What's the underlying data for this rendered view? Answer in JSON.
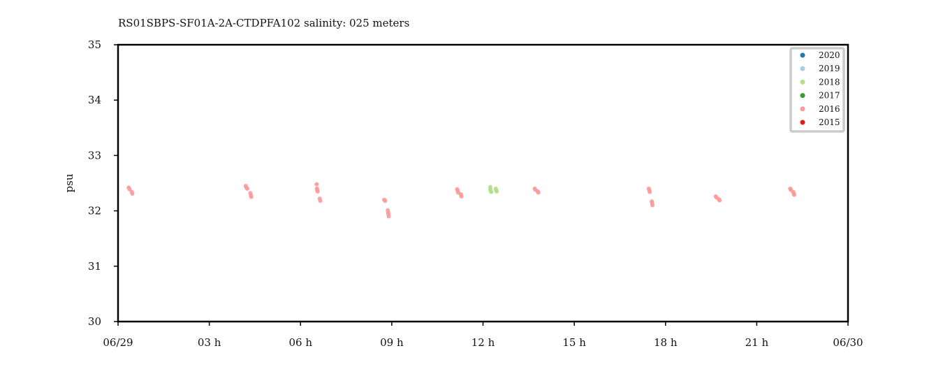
{
  "chart_data": {
    "type": "scatter",
    "title": "RS01SBPS-SF01A-2A-CTDPFA102 salinity: 025 meters",
    "xlabel": "",
    "ylabel": "psu",
    "ylim": [
      30,
      35
    ],
    "xlim": [
      0,
      24
    ],
    "y_ticks": [
      30,
      31,
      32,
      33,
      34,
      35
    ],
    "x_ticks": [
      {
        "value": 0,
        "label": "06/29"
      },
      {
        "value": 3,
        "label": "03 h"
      },
      {
        "value": 6,
        "label": "06 h"
      },
      {
        "value": 9,
        "label": "09 h"
      },
      {
        "value": 12,
        "label": "12 h"
      },
      {
        "value": 15,
        "label": "15 h"
      },
      {
        "value": 18,
        "label": "18 h"
      },
      {
        "value": 21,
        "label": "21 h"
      },
      {
        "value": 24,
        "label": "06/30"
      }
    ],
    "grid": false,
    "legend_position": "top-right",
    "series": [
      {
        "name": "2020",
        "color": "#1f78b4",
        "points": []
      },
      {
        "name": "2019",
        "color": "#a6cee3",
        "points": []
      },
      {
        "name": "2018",
        "color": "#b2df8a",
        "points": [
          [
            12.24,
            32.43
          ],
          [
            12.24,
            32.39
          ],
          [
            12.25,
            32.36
          ],
          [
            12.27,
            32.34
          ],
          [
            12.42,
            32.4
          ],
          [
            12.43,
            32.37
          ],
          [
            12.45,
            32.35
          ]
        ]
      },
      {
        "name": "2017",
        "color": "#33a02c",
        "points": []
      },
      {
        "name": "2016",
        "color": "#fb9a99",
        "points": [
          [
            0.35,
            32.42
          ],
          [
            0.38,
            32.39
          ],
          [
            0.45,
            32.34
          ],
          [
            0.47,
            32.31
          ],
          [
            4.2,
            32.45
          ],
          [
            4.22,
            32.42
          ],
          [
            4.25,
            32.4
          ],
          [
            4.35,
            32.32
          ],
          [
            4.37,
            32.28
          ],
          [
            4.38,
            32.25
          ],
          [
            6.53,
            32.48
          ],
          [
            6.54,
            32.4
          ],
          [
            6.55,
            32.37
          ],
          [
            6.56,
            32.35
          ],
          [
            6.63,
            32.22
          ],
          [
            6.65,
            32.18
          ],
          [
            8.75,
            32.2
          ],
          [
            8.78,
            32.18
          ],
          [
            8.87,
            32.01
          ],
          [
            8.88,
            31.97
          ],
          [
            8.89,
            31.94
          ],
          [
            8.9,
            31.9
          ],
          [
            11.15,
            32.39
          ],
          [
            11.17,
            32.36
          ],
          [
            11.18,
            32.33
          ],
          [
            11.27,
            32.3
          ],
          [
            11.29,
            32.26
          ],
          [
            13.7,
            32.4
          ],
          [
            13.72,
            32.38
          ],
          [
            13.8,
            32.35
          ],
          [
            13.82,
            32.33
          ],
          [
            17.45,
            32.4
          ],
          [
            17.47,
            32.37
          ],
          [
            17.48,
            32.34
          ],
          [
            17.55,
            32.17
          ],
          [
            17.56,
            32.14
          ],
          [
            17.57,
            32.1
          ],
          [
            19.65,
            32.26
          ],
          [
            19.68,
            32.24
          ],
          [
            19.75,
            32.21
          ],
          [
            19.78,
            32.19
          ],
          [
            22.1,
            32.4
          ],
          [
            22.12,
            32.38
          ],
          [
            22.2,
            32.34
          ],
          [
            22.22,
            32.31
          ],
          [
            22.23,
            32.29
          ]
        ]
      },
      {
        "name": "2015",
        "color": "#e31a1c",
        "points": []
      }
    ]
  }
}
